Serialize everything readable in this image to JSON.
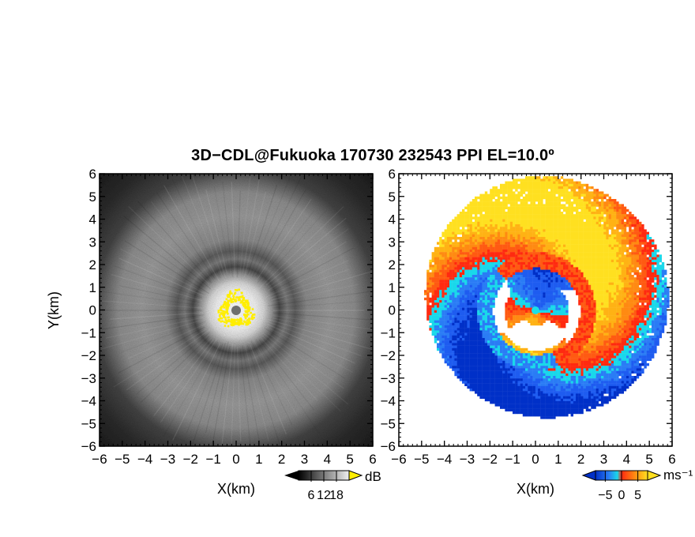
{
  "title": "3D−CDL@Fukuoka 170730 232543 PPI EL=10.0º",
  "chart_data": [
    {
      "type": "heatmap",
      "panel": "left",
      "quantity_unit": "dB",
      "xlabel": "X(km)",
      "ylabel": "Y(km)",
      "xlim": [
        -6,
        6
      ],
      "ylim": [
        -6,
        6
      ],
      "x_ticks": [
        -6,
        -5,
        -4,
        -3,
        -2,
        -1,
        0,
        1,
        2,
        3,
        4,
        5,
        6
      ],
      "y_ticks": [
        -6,
        -5,
        -4,
        -3,
        -2,
        -1,
        0,
        1,
        2,
        3,
        4,
        5,
        6
      ],
      "x_tick_labels": [
        "−6",
        "−5",
        "−4",
        "−3",
        "−2",
        "−1",
        "0",
        "1",
        "2",
        "3",
        "4",
        "5",
        "6"
      ],
      "y_tick_labels": [
        "−6",
        "−5",
        "−4",
        "−3",
        "−2",
        "−1",
        "0",
        "1",
        "2",
        "3",
        "4",
        "5",
        "6"
      ],
      "colormap": "grayscale",
      "colorbar": {
        "label": "dB",
        "ticks": [
          6,
          12,
          18
        ],
        "tick_labels": [
          "6",
          "12",
          "18"
        ]
      },
      "features": "concentric rings of intensity around radar; bright core within ~1 km radius with yellow saturated pixels; dark ring at ~1.5 km; bright ring at ~2–5 km"
    },
    {
      "type": "heatmap",
      "panel": "right",
      "quantity_unit": "ms⁻¹",
      "xlabel": "X(km)",
      "ylabel": "",
      "xlim": [
        -6,
        6
      ],
      "ylim": [
        -6,
        6
      ],
      "x_ticks": [
        -6,
        -5,
        -4,
        -3,
        -2,
        -1,
        0,
        1,
        2,
        3,
        4,
        5,
        6
      ],
      "y_ticks": [
        -6,
        -5,
        -4,
        -3,
        -2,
        -1,
        0,
        1,
        2,
        3,
        4,
        5,
        6
      ],
      "x_tick_labels": [
        "−6",
        "−5",
        "−4",
        "−3",
        "−2",
        "−1",
        "0",
        "1",
        "2",
        "3",
        "4",
        "5",
        "6"
      ],
      "y_tick_labels": [
        "−6",
        "−5",
        "−4",
        "−3",
        "−2",
        "−1",
        "0",
        "1",
        "2",
        "3",
        "4",
        "5",
        "6"
      ],
      "colormap": "diverging blue–cyan–red–orange–yellow",
      "colorbar": {
        "label": "ms⁻¹",
        "ticks": [
          -5,
          0,
          5
        ],
        "tick_labels": [
          "−5",
          "0",
          "5"
        ]
      },
      "features": "spiral velocity dipole: positive (orange/yellow) in north-west outer region, negative (blue/cyan) in south-east; inner ring reversed"
    }
  ],
  "colors": {
    "title": "#000000",
    "axis": "#000000",
    "yellow_saturation": "#ffee00",
    "velocity_blue": "#1e5cf0",
    "velocity_cyan": "#19e0e8",
    "velocity_red": "#ff3010",
    "velocity_orange": "#ff8c10",
    "velocity_yellow": "#ffd51a"
  }
}
